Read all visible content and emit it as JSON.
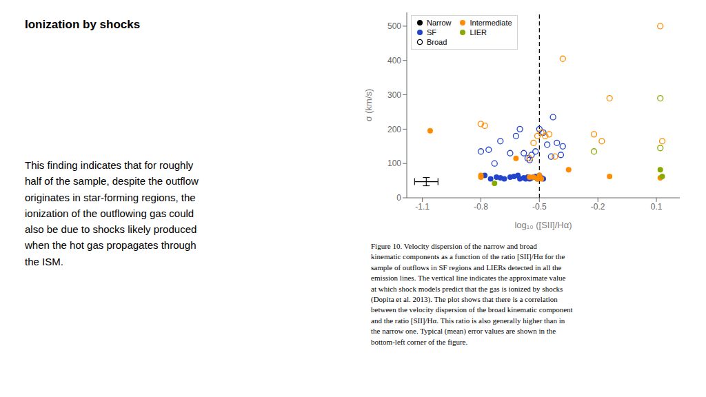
{
  "chart_data": {
    "type": "scatter",
    "title": "Ionization by shocks",
    "annotations": [
      "This finding indicates that for roughly\nhalf of the sample, despite the outflow\noriginates in star-forming regions, the\nionization of the outflowing gas could\nalso be due to shocks likely produced\nwhen the hot gas propagates through\nthe ISM.",
      "Figure 10.  Velocity dispersion of the narrow and broad\nkinematic components as a function of the ratio [SII]/Hα for the\nsample of outflows in SF regions and LIERs detected in all the\nemission lines. The vertical line indicates the approximate value\nat which shock models predict that the gas is ionized by shocks\n(Dopita et al. 2013). The plot shows that there is a correlation\nbetween the velocity dispersion of the broad kinematic component\nand the ratio [SII]/Hα. This ratio is also generally higher than in\nthe narrow one. Typical (mean) error values are shown in the\nbottom-left corner of the figure."
    ],
    "xlabel": "log₁₀ ([SII]/Hα)",
    "ylabel": "σ (km/s)",
    "xlim": [
      -1.18,
      0.22
    ],
    "ylim": [
      0,
      540
    ],
    "xticks": [
      -1.1,
      -0.8,
      -0.5,
      -0.2,
      0.1
    ],
    "yticks": [
      0,
      100,
      200,
      300,
      400,
      500
    ],
    "grid": false,
    "legend": "upper left",
    "markers": [
      {
        "name": "Narrow",
        "marker": "filled"
      },
      {
        "name": "Broad",
        "marker": "open"
      }
    ],
    "series": [
      {
        "name": "SF",
        "color": "#2244cc",
        "marker": "filled",
        "x": [
          -0.78,
          -0.75,
          -0.72,
          -0.7,
          -0.68,
          -0.65,
          -0.63,
          -0.61,
          -0.6,
          -0.58,
          -0.57,
          -0.56,
          -0.55,
          -0.54,
          -0.53,
          -0.52,
          -0.51,
          -0.5,
          -0.49,
          -0.48
        ],
        "y": [
          65,
          55,
          60,
          58,
          55,
          60,
          62,
          65,
          55,
          58,
          55,
          60,
          55,
          58,
          60,
          62,
          55,
          65,
          58,
          55
        ]
      },
      {
        "name": "SF",
        "color": "#2244cc",
        "marker": "open",
        "x": [
          -0.8,
          -0.76,
          -0.73,
          -0.7,
          -0.65,
          -0.62,
          -0.6,
          -0.58,
          -0.56,
          -0.54,
          -0.52,
          -0.5,
          -0.48,
          -0.46,
          -0.44,
          -0.41,
          -0.39,
          -0.55,
          -0.43,
          -0.38
        ],
        "y": [
          135,
          140,
          100,
          165,
          130,
          180,
          200,
          130,
          115,
          125,
          135,
          200,
          190,
          155,
          120,
          160,
          125,
          110,
          235,
          150
        ]
      },
      {
        "name": "Intermediate",
        "color": "#ff8c00",
        "marker": "filled",
        "x": [
          -1.06,
          -0.8,
          -0.8,
          -0.62,
          -0.55,
          -0.53,
          -0.51,
          -0.5,
          -0.49,
          -0.35,
          -0.14,
          0.12
        ],
        "y": [
          195,
          65,
          60,
          115,
          60,
          60,
          55,
          65,
          55,
          82,
          62,
          58
        ]
      },
      {
        "name": "Intermediate",
        "color": "#ff8c00",
        "marker": "open",
        "x": [
          -0.8,
          -0.78,
          -0.55,
          -0.53,
          -0.51,
          -0.49,
          -0.47,
          -0.45,
          -0.42,
          -0.38,
          -0.22,
          -0.18,
          -0.14,
          0.12,
          0.13
        ],
        "y": [
          215,
          210,
          115,
          160,
          180,
          190,
          180,
          185,
          120,
          405,
          185,
          165,
          290,
          500,
          165
        ]
      },
      {
        "name": "LIER",
        "color": "#88aa00",
        "marker": "filled",
        "x": [
          -0.73,
          0.12,
          0.13
        ],
        "y": [
          42,
          82,
          62
        ]
      },
      {
        "name": "LIER",
        "color": "#88aa00",
        "marker": "open",
        "x": [
          -0.22,
          0.12,
          0.12
        ],
        "y": [
          135,
          145,
          290
        ]
      }
    ],
    "reference_line": {
      "x": -0.5,
      "line_style": "dashed"
    },
    "error_bar": {
      "x": -1.08,
      "y": 47,
      "xerr": 0.06,
      "yerr": 12
    }
  }
}
